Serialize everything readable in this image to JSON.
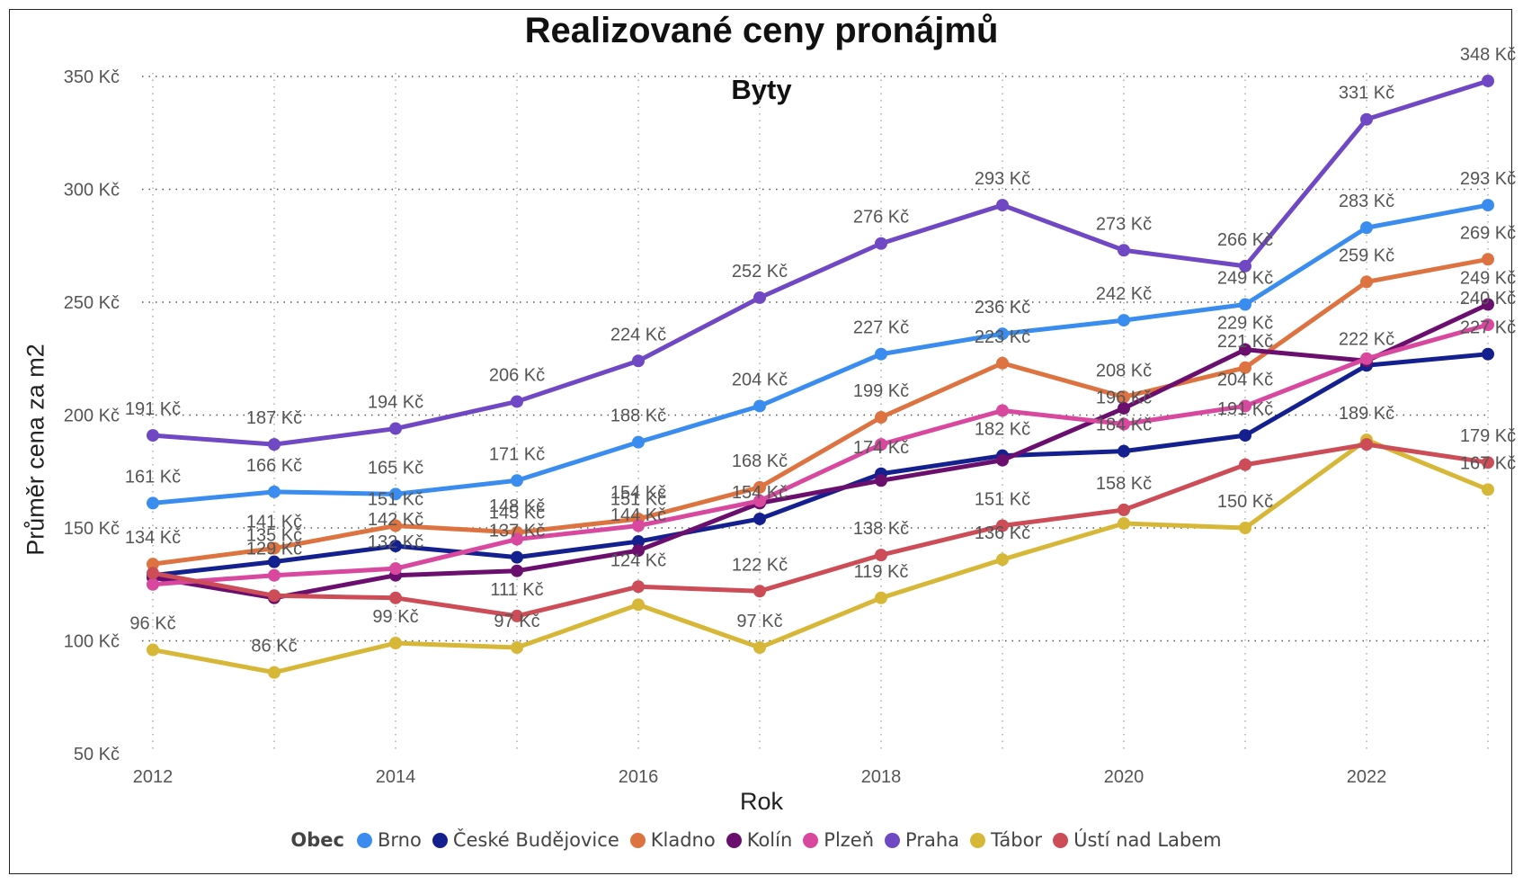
{
  "chart_data": {
    "type": "line",
    "title": "Realizované ceny pronájmů",
    "subtitle": "Byty",
    "xlabel": "Rok",
    "ylabel": "Průměr cena za m2",
    "x": [
      2012,
      2013,
      2014,
      2015,
      2016,
      2017,
      2018,
      2019,
      2020,
      2021,
      2022,
      2023
    ],
    "x_ticks": [
      "2012",
      "2014",
      "2016",
      "2018",
      "2020",
      "2022"
    ],
    "y_ticks": [
      "50 Kč",
      "100 Kč",
      "150 Kč",
      "200 Kč",
      "250 Kč",
      "300 Kč",
      "350 Kč"
    ],
    "ylim": [
      50,
      350
    ],
    "grid": true,
    "legend_title": "Obec",
    "legend_position": "bottom",
    "value_suffix": " Kč",
    "series": [
      {
        "name": "Brno",
        "color": "#3A8DEE",
        "values": [
          161,
          166,
          165,
          171,
          188,
          204,
          227,
          236,
          242,
          249,
          283,
          293
        ]
      },
      {
        "name": "České Budějovice",
        "color": "#15208F",
        "values": [
          129,
          135,
          142,
          137,
          144,
          154,
          174,
          182,
          184,
          191,
          222,
          227
        ]
      },
      {
        "name": "Kladno",
        "color": "#DD7340",
        "values": [
          134,
          141,
          151,
          148,
          154,
          168,
          199,
          223,
          208,
          221,
          259,
          269
        ]
      },
      {
        "name": "Kolín",
        "color": "#6B0F6E",
        "values": [
          128,
          119,
          129,
          131,
          140,
          161,
          171,
          180,
          203,
          229,
          224,
          249
        ]
      },
      {
        "name": "Plzeň",
        "color": "#D8489E",
        "values": [
          125,
          129,
          132,
          145,
          151,
          162,
          187,
          202,
          196,
          204,
          225,
          240
        ]
      },
      {
        "name": "Praha",
        "color": "#7048C4",
        "values": [
          191,
          187,
          194,
          206,
          224,
          252,
          276,
          293,
          273,
          266,
          331,
          348
        ]
      },
      {
        "name": "Tábor",
        "color": "#D6B737",
        "values": [
          96,
          86,
          99,
          97,
          116,
          97,
          119,
          136,
          152,
          150,
          189,
          167
        ]
      },
      {
        "name": "Ústí nad Labem",
        "color": "#CC4D57",
        "values": [
          130,
          120,
          119,
          111,
          124,
          122,
          138,
          151,
          158,
          178,
          187,
          179
        ]
      }
    ],
    "data_labels": [
      {
        "series": "Praha",
        "indices": [
          0,
          1,
          2,
          3,
          4,
          5,
          6,
          7,
          8,
          9,
          10,
          11
        ]
      },
      {
        "series": "Brno",
        "indices": [
          0,
          1,
          2,
          3,
          4,
          5,
          6,
          7,
          8,
          9,
          10,
          11
        ]
      },
      {
        "series": "Kladno",
        "indices": [
          0,
          1,
          2,
          3,
          4,
          5,
          6,
          7,
          8,
          9,
          10,
          11
        ]
      },
      {
        "series": "České Budějovice",
        "indices": [
          1,
          2,
          3,
          4,
          5,
          6,
          7,
          8,
          9,
          10,
          11
        ]
      },
      {
        "series": "Kolín",
        "indices": [
          9,
          11
        ]
      },
      {
        "series": "Plzeň",
        "indices": [
          1,
          2,
          3,
          4,
          8,
          9,
          11
        ]
      },
      {
        "series": "Ústí nad Labem",
        "indices": [
          3,
          4,
          5,
          6,
          7,
          8,
          11
        ]
      },
      {
        "series": "Tábor",
        "indices": [
          0,
          1,
          2,
          3,
          5,
          6,
          7,
          9,
          10,
          11
        ]
      }
    ]
  }
}
